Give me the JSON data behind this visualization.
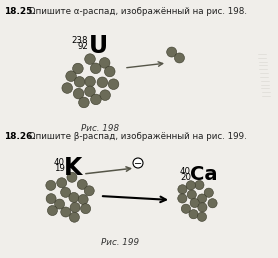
{
  "bg_color": "#f0eeea",
  "nucleus_color": "#6b6b58",
  "nucleus_border": "#3a3a2a",
  "arrow_color": "#555548",
  "U_mass": "238",
  "U_atomic": "92",
  "U_symbol": "U",
  "K_mass": "40",
  "K_atomic": "19",
  "K_symbol": "K",
  "Ca_mass": "40",
  "Ca_atomic": "20",
  "Ca_symbol": "Ca",
  "fig198_caption": "Рис. 198",
  "fig199_caption": "Рис. 199",
  "title1_bold": "18.25.",
  "title1_rest": " Опишите α-распад, изображённый на рис. 198.",
  "title2_bold": "18.26.",
  "title2_rest": " Опишите β-распад, изображённый на рис. 199.",
  "arc_color": "#c0bdb5"
}
